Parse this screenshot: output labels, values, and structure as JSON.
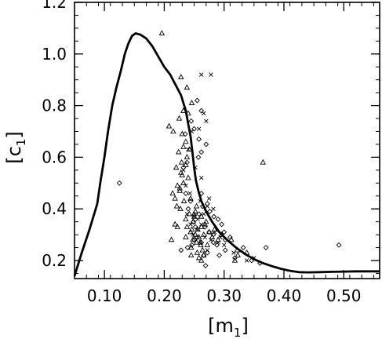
{
  "chart_data": {
    "type": "scatter",
    "title": "",
    "xlabel": "[m1]",
    "ylabel": "[c1]",
    "x_axis_title": {
      "prefix": "[m",
      "sub": "1",
      "suffix": "]"
    },
    "y_axis_title": {
      "prefix": "[c",
      "sub": "1",
      "suffix": "]"
    },
    "xlim": [
      0.05,
      0.56
    ],
    "ylim": [
      0.13,
      1.2
    ],
    "xticks": [
      0.1,
      0.2,
      0.3,
      0.4,
      0.5
    ],
    "xtick_labels": [
      "0.10",
      "0.20",
      "0.30",
      "0.40",
      "0.50"
    ],
    "yticks": [
      0.2,
      0.4,
      0.6,
      0.8,
      1.0,
      1.2
    ],
    "ytick_labels": [
      "0.2",
      "0.4",
      "0.6",
      "0.8",
      "1.0",
      "1.2"
    ],
    "x_minor_step": 0.02,
    "y_minor_step": 0.05,
    "grid": false,
    "legend": "none",
    "curve": {
      "x": [
        0.05,
        0.062,
        0.075,
        0.088,
        0.093,
        0.1,
        0.106,
        0.113,
        0.12,
        0.128,
        0.134,
        0.14,
        0.146,
        0.152,
        0.16,
        0.17,
        0.18,
        0.19,
        0.2,
        0.21,
        0.219,
        0.228,
        0.236,
        0.24,
        0.244,
        0.247,
        0.25,
        0.253,
        0.257,
        0.262,
        0.27,
        0.28,
        0.292,
        0.305,
        0.32,
        0.335,
        0.35,
        0.365,
        0.38,
        0.395,
        0.41,
        0.425,
        0.44,
        0.46,
        0.48,
        0.5,
        0.52,
        0.54,
        0.56
      ],
      "y": [
        0.14,
        0.23,
        0.32,
        0.42,
        0.5,
        0.6,
        0.7,
        0.8,
        0.87,
        0.94,
        1.0,
        1.04,
        1.07,
        1.08,
        1.075,
        1.06,
        1.03,
        0.99,
        0.95,
        0.92,
        0.88,
        0.84,
        0.78,
        0.73,
        0.68,
        0.62,
        0.56,
        0.51,
        0.47,
        0.43,
        0.39,
        0.35,
        0.31,
        0.28,
        0.25,
        0.225,
        0.205,
        0.19,
        0.178,
        0.168,
        0.16,
        0.155,
        0.154,
        0.155,
        0.156,
        0.157,
        0.158,
        0.158,
        0.158
      ]
    },
    "series": [
      {
        "marker": "triangle",
        "x": [
          0.196,
          0.228,
          0.238,
          0.246,
          0.232,
          0.24,
          0.225,
          0.215,
          0.23,
          0.236,
          0.242,
          0.238,
          0.229,
          0.22,
          0.228,
          0.24,
          0.232,
          0.222,
          0.226,
          0.214,
          0.218,
          0.233,
          0.221,
          0.227,
          0.242,
          0.25,
          0.236,
          0.248,
          0.218,
          0.222,
          0.212,
          0.238,
          0.244,
          0.252,
          0.256,
          0.262,
          0.268,
          0.258,
          0.248,
          0.254,
          0.266,
          0.261,
          0.245,
          0.275,
          0.27,
          0.28,
          0.29,
          0.284,
          0.255,
          0.245,
          0.236,
          0.262,
          0.272,
          0.264,
          0.252,
          0.232,
          0.208,
          0.296,
          0.312,
          0.323,
          0.318,
          0.266,
          0.254,
          0.244,
          0.226,
          0.23,
          0.224,
          0.236,
          0.25,
          0.26,
          0.246,
          0.365,
          0.322,
          0.338,
          0.258,
          0.262
        ],
        "y": [
          1.08,
          0.91,
          0.87,
          0.81,
          0.78,
          0.77,
          0.75,
          0.7,
          0.69,
          0.66,
          0.63,
          0.6,
          0.58,
          0.56,
          0.54,
          0.52,
          0.5,
          0.49,
          0.47,
          0.46,
          0.44,
          0.43,
          0.41,
          0.4,
          0.38,
          0.38,
          0.36,
          0.35,
          0.34,
          0.33,
          0.28,
          0.33,
          0.31,
          0.3,
          0.32,
          0.33,
          0.34,
          0.29,
          0.28,
          0.27,
          0.3,
          0.26,
          0.25,
          0.31,
          0.35,
          0.29,
          0.28,
          0.32,
          0.23,
          0.22,
          0.29,
          0.37,
          0.26,
          0.24,
          0.39,
          0.64,
          0.72,
          0.3,
          0.28,
          0.22,
          0.2,
          0.22,
          0.41,
          0.44,
          0.48,
          0.53,
          0.62,
          0.57,
          0.37,
          0.27,
          0.32,
          0.58,
          0.24,
          0.23,
          0.21,
          0.2
        ]
      },
      {
        "marker": "diamond",
        "x": [
          0.125,
          0.255,
          0.262,
          0.245,
          0.25,
          0.235,
          0.258,
          0.27,
          0.262,
          0.257,
          0.238,
          0.232,
          0.236,
          0.244,
          0.264,
          0.276,
          0.283,
          0.29,
          0.296,
          0.268,
          0.275,
          0.282,
          0.255,
          0.25,
          0.262,
          0.246,
          0.239,
          0.228,
          0.272,
          0.266,
          0.288,
          0.3,
          0.31,
          0.302,
          0.318,
          0.332,
          0.346,
          0.36,
          0.37,
          0.492,
          0.258,
          0.249,
          0.24,
          0.252,
          0.262,
          0.272,
          0.282,
          0.292,
          0.302,
          0.269
        ],
        "y": [
          0.5,
          0.82,
          0.78,
          0.74,
          0.71,
          0.69,
          0.67,
          0.65,
          0.62,
          0.6,
          0.58,
          0.56,
          0.46,
          0.43,
          0.41,
          0.39,
          0.37,
          0.36,
          0.34,
          0.33,
          0.31,
          0.3,
          0.29,
          0.28,
          0.27,
          0.26,
          0.25,
          0.24,
          0.23,
          0.22,
          0.26,
          0.31,
          0.29,
          0.24,
          0.21,
          0.25,
          0.2,
          0.19,
          0.25,
          0.26,
          0.38,
          0.35,
          0.4,
          0.33,
          0.46,
          0.42,
          0.27,
          0.22,
          0.28,
          0.18
        ]
      },
      {
        "marker": "cross",
        "x": [
          0.262,
          0.278,
          0.266,
          0.27,
          0.258,
          0.246,
          0.24,
          0.252,
          0.236,
          0.243,
          0.26,
          0.272,
          0.282,
          0.266,
          0.25,
          0.244,
          0.256,
          0.248,
          0.268,
          0.278,
          0.29,
          0.3,
          0.272,
          0.262,
          0.256,
          0.238,
          0.284,
          0.294,
          0.316,
          0.338,
          0.35,
          0.275,
          0.262,
          0.232
        ],
        "y": [
          0.92,
          0.92,
          0.77,
          0.74,
          0.71,
          0.7,
          0.63,
          0.56,
          0.49,
          0.46,
          0.43,
          0.41,
          0.4,
          0.38,
          0.37,
          0.34,
          0.32,
          0.3,
          0.29,
          0.28,
          0.27,
          0.26,
          0.24,
          0.34,
          0.36,
          0.38,
          0.31,
          0.29,
          0.23,
          0.2,
          0.21,
          0.44,
          0.52,
          0.55
        ]
      }
    ]
  }
}
